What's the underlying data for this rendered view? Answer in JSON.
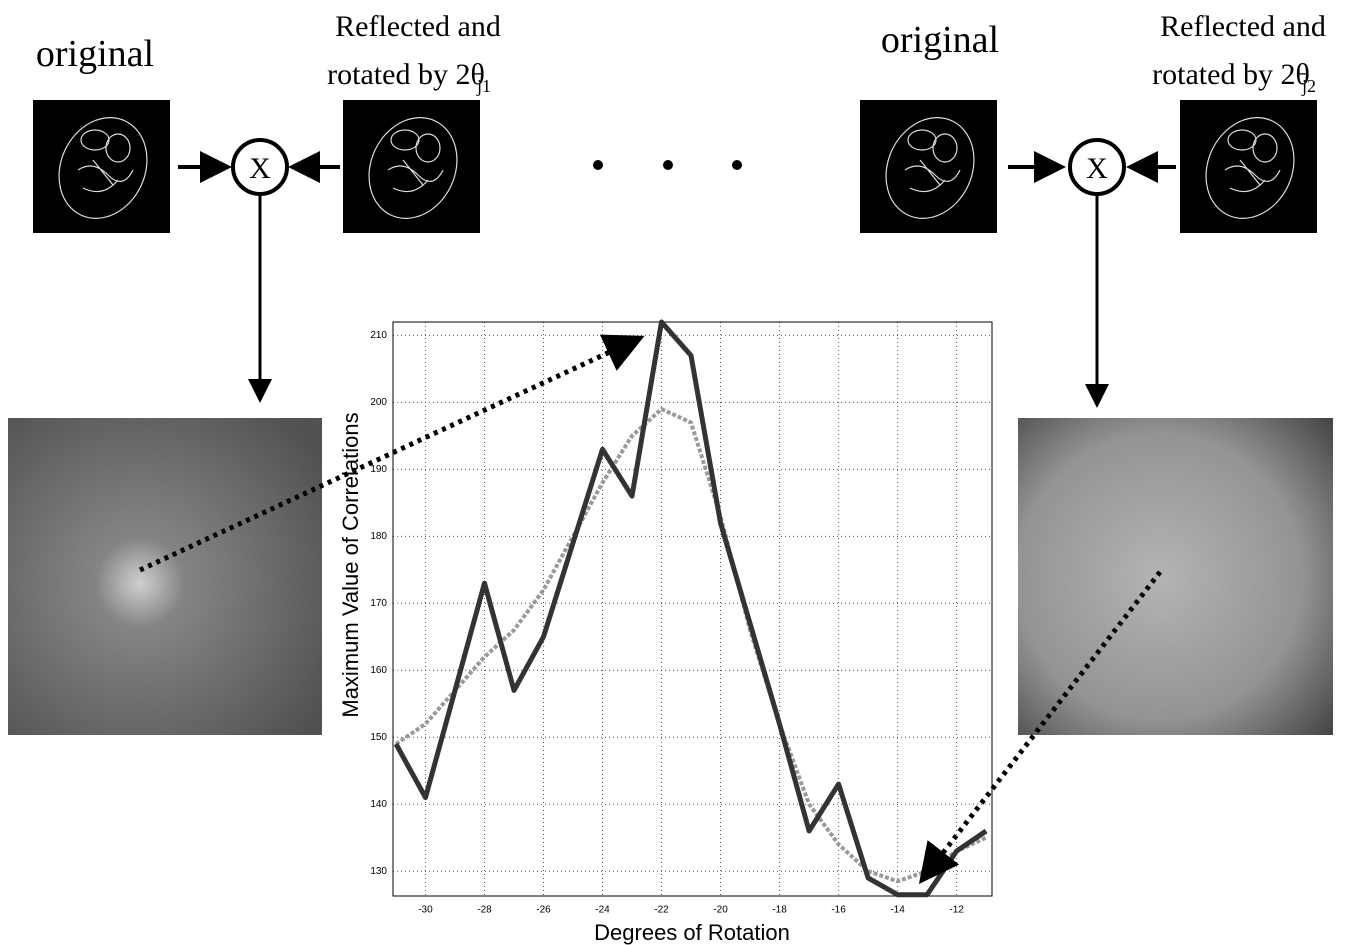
{
  "diagram": {
    "left": {
      "original": "original",
      "reflected_line1": "Reflected and",
      "reflected_line2": "rotated by 2θ",
      "subscript": "j1",
      "operator": "X"
    },
    "right": {
      "original": "original",
      "reflected_line1": "Reflected and",
      "reflected_line2": "rotated by 2θ",
      "subscript": "j2",
      "operator": "X"
    }
  },
  "chart_data": {
    "type": "line",
    "x_label": "Degrees of Rotation",
    "y_label": "Maximum Value of Correlations",
    "x": [
      -31,
      -30,
      -29,
      -28,
      -27,
      -26,
      -25,
      -24,
      -23,
      -22,
      -21,
      -20,
      -19,
      -18,
      -17,
      -16,
      -15,
      -14,
      -13,
      -12,
      -11
    ],
    "series": [
      {
        "color": "#333333",
        "line_style": "solid",
        "values": [
          149,
          141,
          157,
          173,
          157,
          165,
          179,
          193,
          186,
          212,
          207,
          182,
          167,
          152,
          136,
          143,
          129,
          126.5,
          126.5,
          133,
          136
        ]
      },
      {
        "color": "#9a9a9a",
        "line_style": "dashed",
        "values": [
          149,
          152,
          157,
          162,
          166,
          172,
          180,
          188,
          195,
          199,
          197,
          183,
          166,
          152,
          140,
          134,
          130,
          128.5,
          130,
          133,
          135
        ]
      }
    ],
    "xlim": [
      -31.1,
      -10.8
    ],
    "ylim": [
      126.3,
      212
    ],
    "xticks": [
      -30,
      -28,
      -26,
      -24,
      -22,
      -20,
      -18,
      -16,
      -14,
      -12
    ],
    "yticks": [
      130,
      140,
      150,
      160,
      170,
      180,
      190,
      200,
      210
    ],
    "grid": true
  }
}
